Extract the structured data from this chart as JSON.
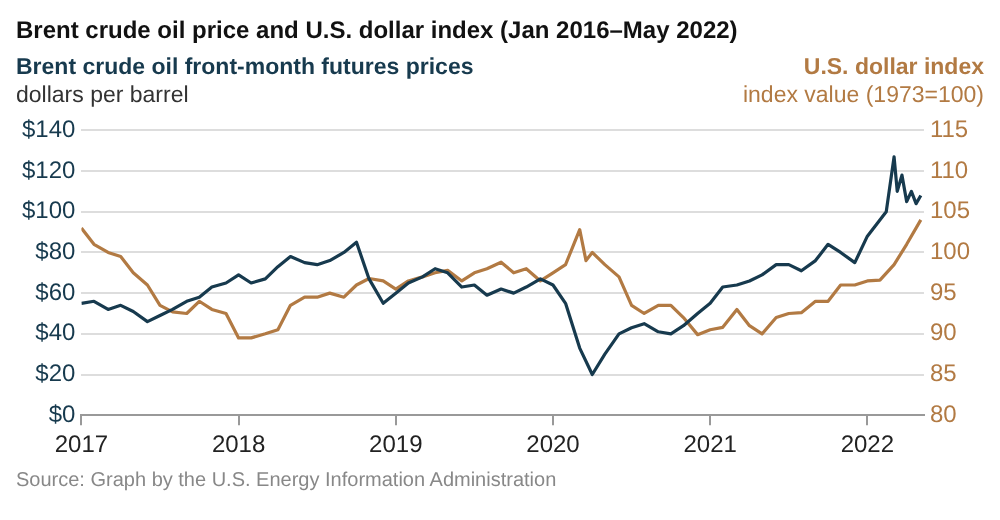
{
  "chart_data": {
    "type": "line",
    "title": "Brent crude oil price and U.S. dollar index (Jan 2016–May 2022)",
    "ylabel": "Brent crude oil front-month futures prices\ndollars per barrel",
    "y2label": "U.S. dollar index\nindex value (1973=100)",
    "annotations": [
      "Source: Graph by the U.S. Energy Information Administration"
    ],
    "xlim": [
      2017,
      2022.36
    ],
    "xticks": [
      2017,
      2018,
      2019,
      2020,
      2021,
      2022
    ],
    "ylim": [
      0,
      140
    ],
    "yticks": [
      {
        "value": 0,
        "label": "$0"
      },
      {
        "value": 20,
        "label": "$20"
      },
      {
        "value": 40,
        "label": "$40"
      },
      {
        "value": 60,
        "label": "$60"
      },
      {
        "value": 80,
        "label": "$80"
      },
      {
        "value": 100,
        "label": "$100"
      },
      {
        "value": 120,
        "label": "$120"
      },
      {
        "value": 140,
        "label": "$140"
      }
    ],
    "y2lim": [
      80,
      115
    ],
    "y2ticks": [
      80,
      85,
      90,
      95,
      100,
      105,
      110,
      115
    ],
    "grid": "y",
    "legend": false,
    "marker": "none",
    "line_style": "solid",
    "series": [
      {
        "color": "#173a4e",
        "x": [
          2017.0,
          2017.08,
          2017.17,
          2017.25,
          2017.33,
          2017.42,
          2017.5,
          2017.58,
          2017.67,
          2017.75,
          2017.83,
          2017.92,
          2018.0,
          2018.08,
          2018.17,
          2018.25,
          2018.33,
          2018.42,
          2018.5,
          2018.58,
          2018.67,
          2018.75,
          2018.83,
          2018.92,
          2019.0,
          2019.08,
          2019.17,
          2019.25,
          2019.33,
          2019.42,
          2019.5,
          2019.58,
          2019.67,
          2019.75,
          2019.83,
          2019.92,
          2020.0,
          2020.08,
          2020.17,
          2020.25,
          2020.33,
          2020.42,
          2020.5,
          2020.58,
          2020.67,
          2020.75,
          2020.83,
          2020.92,
          2021.0,
          2021.08,
          2021.17,
          2021.25,
          2021.33,
          2021.42,
          2021.5,
          2021.58,
          2021.67,
          2021.75,
          2021.83,
          2021.92,
          2022.0,
          2022.06,
          2022.12,
          2022.17,
          2022.19,
          2022.22,
          2022.25,
          2022.28,
          2022.31,
          2022.34
        ],
        "values": [
          55,
          56,
          52,
          54,
          51,
          46,
          49,
          52,
          56,
          58,
          63,
          65,
          69,
          65,
          67,
          73,
          78,
          75,
          74,
          76,
          80,
          85,
          67,
          55,
          60,
          65,
          68,
          72,
          70,
          63,
          64,
          59,
          62,
          60,
          63,
          67,
          64,
          55,
          33,
          20,
          30,
          40,
          43,
          45,
          41,
          40,
          44,
          50,
          55,
          63,
          64,
          66,
          69,
          74,
          74,
          71,
          76,
          84,
          80,
          75,
          88,
          94,
          100,
          127,
          110,
          118,
          105,
          110,
          104,
          108
        ]
      },
      {
        "color": "#b27a43",
        "axis": "y2",
        "x": [
          2017.0,
          2017.08,
          2017.17,
          2017.25,
          2017.33,
          2017.42,
          2017.5,
          2017.58,
          2017.67,
          2017.75,
          2017.83,
          2017.92,
          2018.0,
          2018.08,
          2018.17,
          2018.25,
          2018.33,
          2018.42,
          2018.5,
          2018.58,
          2018.67,
          2018.75,
          2018.83,
          2018.92,
          2019.0,
          2019.08,
          2019.17,
          2019.25,
          2019.33,
          2019.42,
          2019.5,
          2019.58,
          2019.67,
          2019.75,
          2019.83,
          2019.92,
          2020.0,
          2020.08,
          2020.17,
          2020.21,
          2020.25,
          2020.33,
          2020.42,
          2020.5,
          2020.58,
          2020.67,
          2020.75,
          2020.83,
          2020.92,
          2021.0,
          2021.08,
          2021.17,
          2021.25,
          2021.33,
          2021.42,
          2021.5,
          2021.58,
          2021.67,
          2021.75,
          2021.83,
          2021.92,
          2022.0,
          2022.08,
          2022.17,
          2022.25,
          2022.34
        ],
        "values": [
          103,
          101,
          100,
          99.5,
          97.5,
          96,
          93.5,
          92.7,
          92.5,
          94,
          93,
          92.5,
          89.5,
          89.5,
          90,
          90.5,
          93.5,
          94.5,
          94.5,
          95,
          94.5,
          96,
          96.8,
          96.5,
          95.5,
          96.5,
          97,
          97.5,
          97.8,
          96.5,
          97.5,
          98,
          98.8,
          97.5,
          98,
          96.5,
          97.5,
          98.5,
          102.8,
          99,
          100,
          98.5,
          97,
          93.5,
          92.5,
          93.5,
          93.5,
          92,
          89.9,
          90.5,
          90.8,
          93,
          91,
          90,
          92,
          92.5,
          92.6,
          94,
          94,
          96,
          96,
          96.5,
          96.6,
          98.5,
          101,
          104
        ]
      }
    ]
  }
}
